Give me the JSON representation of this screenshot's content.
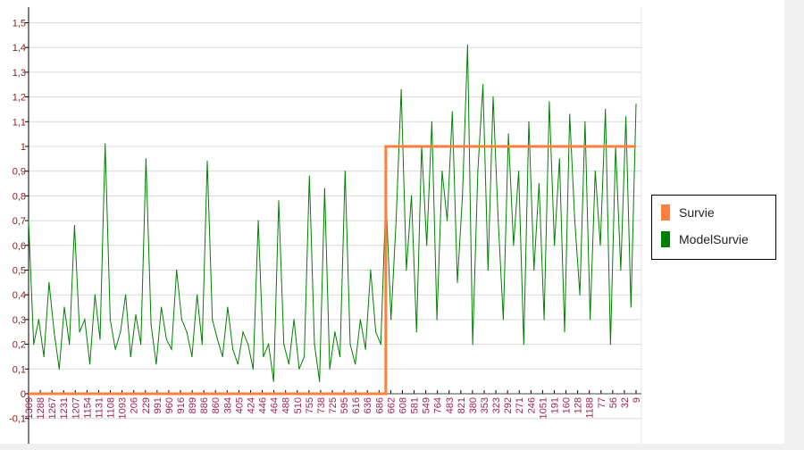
{
  "chart_data": {
    "type": "line",
    "title": "",
    "xlabel": "",
    "ylabel": "",
    "ylim": [
      -0.2,
      1.6
    ],
    "y_ticks": [
      "-0,1",
      "0",
      "0,1",
      "0,2",
      "0,3",
      "0,4",
      "0,5",
      "0,6",
      "0,7",
      "0,8",
      "0,9",
      "1",
      "1,1",
      "1,2",
      "1,3",
      "1,4",
      "1,5"
    ],
    "x_tick_labels": [
      "1309",
      "1288",
      "1267",
      "1231",
      "1207",
      "1154",
      "1131",
      "1108",
      "1093",
      "206",
      "229",
      "991",
      "960",
      "916",
      "899",
      "886",
      "860",
      "384",
      "405",
      "424",
      "446",
      "464",
      "488",
      "510",
      "755",
      "738",
      "725",
      "595",
      "616",
      "636",
      "686",
      "662",
      "608",
      "581",
      "549",
      "764",
      "483",
      "821",
      "380",
      "353",
      "323",
      "292",
      "271",
      "246",
      "1051",
      "191",
      "160",
      "128",
      "1188",
      "77",
      "56",
      "32",
      "9"
    ],
    "grid": "horizontal",
    "legend_position": "right",
    "series": [
      {
        "name": "Survie",
        "color": "#ff7f3f",
        "step_at_fraction": 0.588,
        "values_before": 0,
        "values_after": 1
      },
      {
        "name": "ModelSurvie",
        "color": "#008000",
        "values": [
          0.7,
          0.2,
          0.3,
          0.15,
          0.45,
          0.25,
          0.1,
          0.35,
          0.2,
          0.68,
          0.25,
          0.3,
          0.12,
          0.4,
          0.22,
          1.01,
          0.3,
          0.18,
          0.25,
          0.4,
          0.15,
          0.32,
          0.2,
          0.95,
          0.28,
          0.12,
          0.35,
          0.22,
          0.18,
          0.5,
          0.3,
          0.25,
          0.15,
          0.4,
          0.2,
          0.94,
          0.3,
          0.22,
          0.15,
          0.35,
          0.18,
          0.12,
          0.25,
          0.2,
          0.1,
          0.7,
          0.15,
          0.2,
          0.05,
          0.78,
          0.2,
          0.12,
          0.3,
          0.1,
          0.15,
          0.88,
          0.2,
          0.05,
          0.83,
          0.1,
          0.25,
          0.15,
          0.9,
          0.2,
          0.12,
          0.3,
          0.18,
          0.5,
          0.25,
          0.2,
          0.8,
          0.3,
          0.7,
          1.23,
          0.5,
          0.8,
          0.25,
          1.0,
          0.6,
          1.1,
          0.3,
          0.9,
          0.7,
          1.14,
          0.45,
          0.8,
          1.41,
          0.2,
          0.9,
          1.25,
          0.5,
          1.2,
          0.7,
          0.3,
          1.05,
          0.6,
          0.9,
          0.2,
          1.1,
          0.5,
          0.85,
          0.3,
          1.18,
          0.6,
          0.95,
          0.25,
          1.13,
          0.7,
          0.4,
          1.1,
          0.3,
          0.9,
          0.6,
          1.15,
          0.2,
          1.0,
          0.5,
          1.12,
          0.35,
          1.17
        ]
      }
    ]
  },
  "legend": {
    "items": [
      {
        "label": "Survie",
        "color": "#ff7f3f"
      },
      {
        "label": "ModelSurvie",
        "color": "#008000"
      }
    ]
  }
}
